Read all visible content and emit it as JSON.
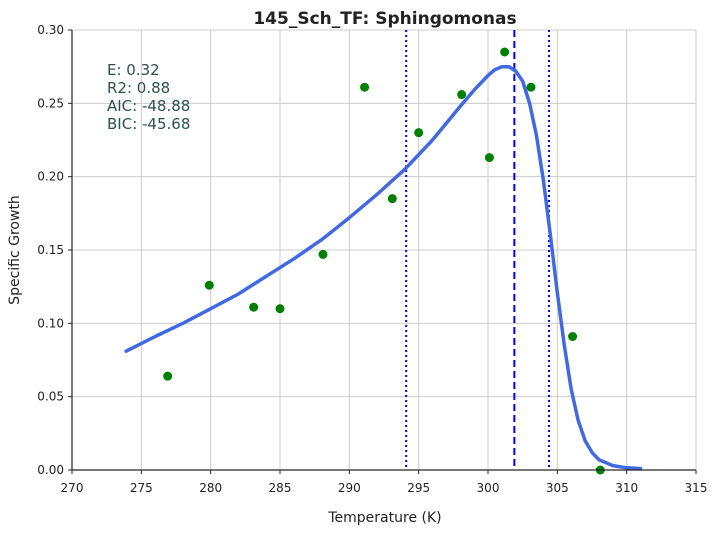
{
  "chart_data": {
    "type": "scatter",
    "title": "145_Sch_TF: Sphingomonas",
    "xlabel": "Temperature (K)",
    "ylabel": "Specific Growth",
    "xlim": [
      270,
      315
    ],
    "ylim": [
      0.0,
      0.3
    ],
    "xticks": [
      270,
      275,
      280,
      285,
      290,
      295,
      300,
      305,
      310,
      315
    ],
    "xtick_labels": [
      "270",
      "275",
      "280",
      "285",
      "290",
      "295",
      "300",
      "305",
      "310",
      "315"
    ],
    "yticks": [
      0.0,
      0.05,
      0.1,
      0.15,
      0.2,
      0.25,
      0.3
    ],
    "ytick_labels": [
      "0.00",
      "0.05",
      "0.10",
      "0.15",
      "0.20",
      "0.25",
      "0.30"
    ],
    "grid": true,
    "observed": {
      "color": "#008000",
      "x": [
        276.9,
        279.9,
        283.1,
        285.0,
        288.1,
        291.1,
        293.1,
        295.0,
        298.1,
        300.1,
        301.2,
        303.1,
        306.1,
        308.1
      ],
      "y": [
        0.064,
        0.126,
        0.111,
        0.11,
        0.147,
        0.261,
        0.185,
        0.23,
        0.256,
        0.213,
        0.285,
        0.261,
        0.091,
        0.0
      ]
    },
    "fitted_curve": {
      "color": "#4169e1",
      "x": [
        273.9,
        276,
        278,
        280,
        282,
        284,
        286,
        288,
        290,
        292,
        294,
        296,
        298,
        299,
        300,
        300.5,
        301,
        301.5,
        302,
        302.5,
        303,
        303.5,
        304,
        304.5,
        305,
        305.5,
        306,
        306.5,
        307,
        307.5,
        308,
        309,
        310,
        311
      ],
      "y": [
        0.081,
        0.091,
        0.1,
        0.11,
        0.12,
        0.132,
        0.144,
        0.157,
        0.172,
        0.188,
        0.205,
        0.225,
        0.248,
        0.259,
        0.269,
        0.273,
        0.275,
        0.275,
        0.272,
        0.265,
        0.25,
        0.228,
        0.197,
        0.16,
        0.121,
        0.085,
        0.055,
        0.034,
        0.02,
        0.012,
        0.007,
        0.003,
        0.0015,
        0.001
      ]
    },
    "peak_line": {
      "x": 301.9,
      "color": "#0000ff",
      "style": "dashed"
    },
    "bound_lines": {
      "x": [
        294.1,
        304.4
      ],
      "color": "#0000ff",
      "style": "dotted"
    },
    "stats_lines": [
      "E:  0.32",
      "R2:  0.88",
      "AIC: -48.88",
      "BIC: -45.68"
    ]
  }
}
